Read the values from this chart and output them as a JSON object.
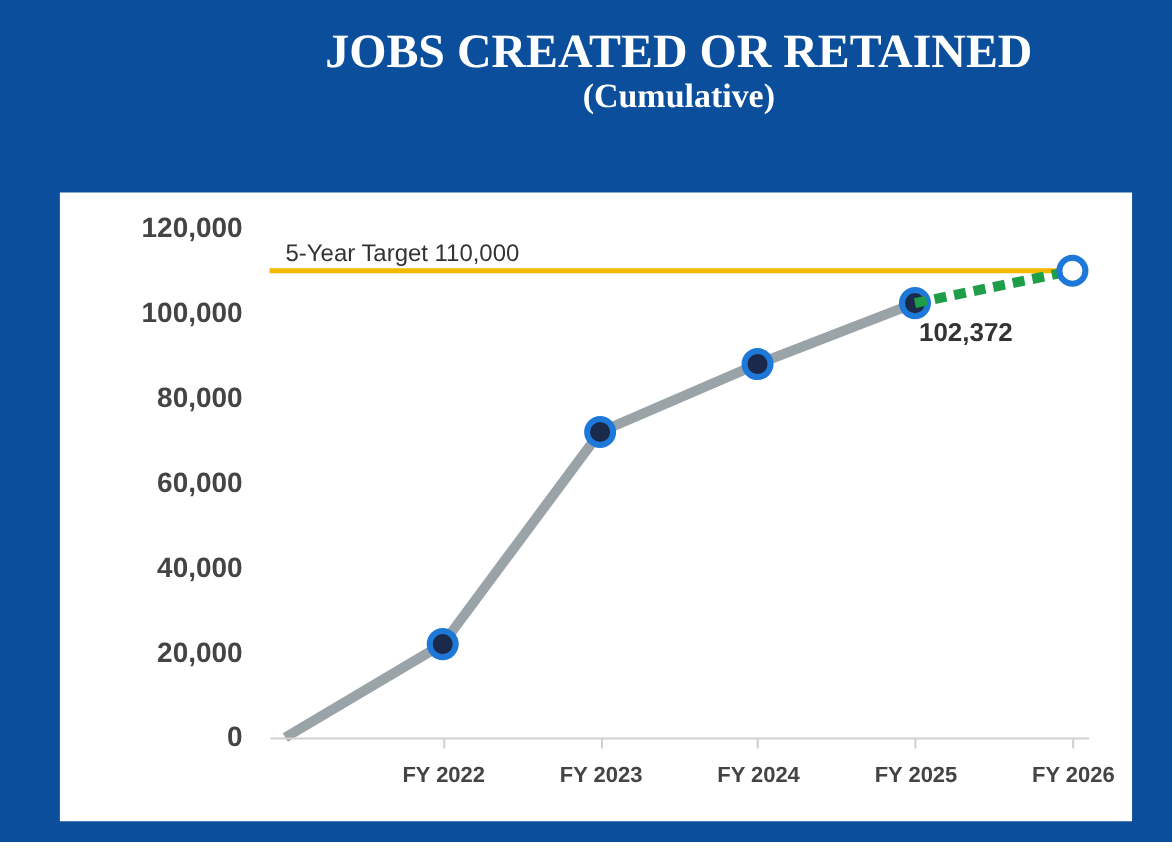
{
  "chart_data": {
    "type": "line",
    "title": "JOBS CREATED OR RETAINED",
    "subtitle": "(Cumulative)",
    "categories": [
      null,
      "FY 2022",
      "FY 2023",
      "FY 2024",
      "FY 2025",
      "FY 2026"
    ],
    "ylim": [
      0,
      120000
    ],
    "yticks": [
      {
        "value": 0,
        "label": "0"
      },
      {
        "value": 20000,
        "label": "20,000"
      },
      {
        "value": 40000,
        "label": "40,000"
      },
      {
        "value": 60000,
        "label": "60,000"
      },
      {
        "value": 80000,
        "label": "80,000"
      },
      {
        "value": 100000,
        "label": "100,000"
      },
      {
        "value": 120000,
        "label": "120,000"
      }
    ],
    "series": [
      {
        "type": "line",
        "color": "#9aa3a8",
        "values": [
          0,
          22000,
          72000,
          88000,
          102372,
          null
        ],
        "marker": "none",
        "line_style": "solid"
      },
      {
        "type": "scatter",
        "color": "#1b2a4a",
        "values": [
          null,
          22000,
          72000,
          88000,
          102372,
          null
        ],
        "marker": "circle",
        "value_labels": [
          null,
          null,
          null,
          null,
          "102,372",
          null
        ]
      },
      {
        "type": "line",
        "color": "#1e9e48",
        "values": [
          null,
          null,
          null,
          null,
          102372,
          110000
        ],
        "marker": "none",
        "line_style": "dashed"
      },
      {
        "type": "scatter",
        "color": "#ffffff",
        "values": [
          null,
          null,
          null,
          null,
          null,
          110000
        ],
        "marker": "circle"
      }
    ],
    "ref_lines": [
      {
        "axis": "y",
        "value": 110000,
        "label": "5-Year Target 110,000",
        "color": "#f5b800"
      }
    ]
  }
}
